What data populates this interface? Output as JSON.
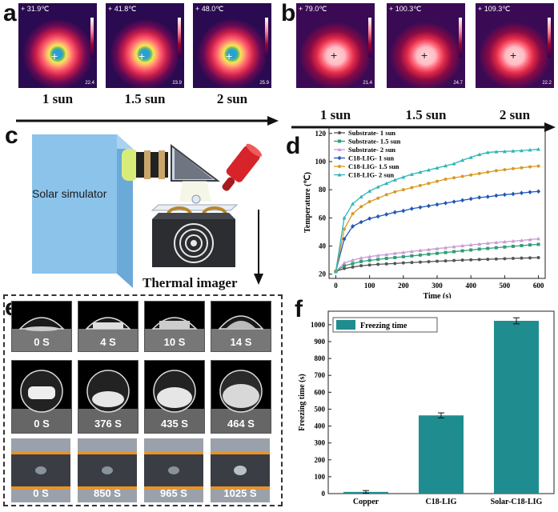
{
  "panels": {
    "a": "a",
    "b": "b",
    "c": "c",
    "d": "d",
    "e": "e",
    "f": "f"
  },
  "panel_a": {
    "images": [
      {
        "temp": "+ 31.9℃",
        "min": "22.4",
        "sun": "1 sun"
      },
      {
        "temp": "+ 41.8℃",
        "min": "23.9",
        "sun": "1.5 sun"
      },
      {
        "temp": "+ 48.0℃",
        "min": "25.9",
        "sun": "2 sun"
      }
    ]
  },
  "panel_b": {
    "images": [
      {
        "temp": "+ 79.0℃",
        "min": "21.4",
        "sun": "1 sun"
      },
      {
        "temp": "+ 100.3℃",
        "min": "24.7",
        "sun": "1.5 sun"
      },
      {
        "temp": "+ 109.3℃",
        "min": "22.2",
        "sun": "2 sun"
      }
    ]
  },
  "panel_c": {
    "solar_label": "Solar simulator",
    "imager_label": "Thermal imager"
  },
  "panel_e": {
    "row1": [
      "0 S",
      "4 S",
      "10 S",
      "14 S"
    ],
    "row2": [
      "0 S",
      "376 S",
      "435 S",
      "464 S"
    ],
    "row3": [
      "0 S",
      "850 S",
      "965 S",
      "1025 S"
    ]
  },
  "colors": {
    "substrate_1": "#555555",
    "substrate_15": "#2e9e74",
    "substrate_2": "#c79bd6",
    "lig_1": "#2057b8",
    "lig_15": "#d99a24",
    "lig_2": "#2cb6b8",
    "bar": "#1f8c8f"
  },
  "chart_data": [
    {
      "type": "line",
      "xlabel": "Time (s)",
      "ylabel": "Temperature (℃)",
      "xlim": [
        -20,
        620
      ],
      "ylim": [
        17,
        125
      ],
      "xticks": [
        0,
        100,
        200,
        300,
        400,
        500,
        600
      ],
      "yticks": [
        20,
        40,
        60,
        80,
        100,
        120
      ],
      "legend_position": "top-left",
      "x": [
        0,
        25,
        50,
        75,
        100,
        125,
        150,
        175,
        200,
        225,
        250,
        275,
        300,
        325,
        350,
        375,
        400,
        425,
        450,
        475,
        500,
        525,
        550,
        575,
        600
      ],
      "series": [
        {
          "name": "Substrate- 1 sun",
          "color_key": "substrate_1",
          "marker": "circle",
          "values": [
            22,
            24,
            25,
            26,
            26.5,
            27,
            27.3,
            27.6,
            28,
            28.3,
            28.6,
            28.9,
            29.2,
            29.4,
            29.7,
            30,
            30.2,
            30.4,
            30.6,
            30.8,
            31,
            31.2,
            31.4,
            31.6,
            31.8
          ]
        },
        {
          "name": "Substrate- 1.5 sun",
          "color_key": "substrate_15",
          "marker": "square",
          "values": [
            22,
            26,
            27.5,
            29,
            29.8,
            30.5,
            31.2,
            31.8,
            32.4,
            33,
            33.6,
            34.2,
            34.8,
            35.4,
            36,
            36.6,
            37.2,
            37.8,
            38.3,
            38.8,
            39.3,
            39.8,
            40.3,
            40.8,
            41.2
          ]
        },
        {
          "name": "Substrate- 2 sun",
          "color_key": "substrate_2",
          "marker": "triangle",
          "values": [
            22,
            28,
            30,
            31.5,
            32.5,
            33.3,
            34,
            34.8,
            35.5,
            36.2,
            36.9,
            37.5,
            38.2,
            38.8,
            39.5,
            40.2,
            40.8,
            41.4,
            42,
            42.5,
            43,
            43.5,
            44,
            44.6,
            45.2
          ]
        },
        {
          "name": "C18-LIG- 1 sun",
          "color_key": "lig_1",
          "marker": "diamond",
          "values": [
            22,
            45,
            54,
            57,
            59.5,
            61,
            62.5,
            64,
            65,
            66.5,
            67.5,
            68.5,
            69.5,
            70.5,
            71.5,
            72.5,
            73.5,
            74.5,
            75,
            75.8,
            76.5,
            77,
            77.7,
            78.3,
            78.8
          ]
        },
        {
          "name": "C18-LIG- 1.5 sun",
          "color_key": "lig_15",
          "marker": "circle",
          "values": [
            22,
            52,
            63,
            68,
            71.5,
            74,
            76.5,
            78.5,
            80,
            81.5,
            83,
            84.5,
            86,
            87.5,
            88.5,
            89.5,
            90.5,
            91.5,
            92.5,
            93.5,
            94.2,
            95,
            95.6,
            96.3,
            96.8
          ]
        },
        {
          "name": "C18-LIG- 2 sun",
          "color_key": "lig_2",
          "marker": "triangle",
          "values": [
            22,
            60,
            70,
            75,
            79,
            82,
            84.5,
            87,
            89,
            91,
            92.5,
            94,
            95.5,
            97,
            98.5,
            101,
            103,
            105,
            106.5,
            107,
            107.2,
            107.5,
            107.8,
            108.3,
            108.8
          ]
        }
      ]
    },
    {
      "type": "bar",
      "ylabel": "Freezing time (s)",
      "legend": "Freezing time",
      "legend_position": "top-left",
      "categories": [
        "Copper",
        "C18-LIG",
        "Solar-C18-LIG"
      ],
      "values": [
        10,
        463,
        1023
      ],
      "errors": [
        8,
        15,
        18
      ],
      "ylim": [
        0,
        1080
      ],
      "yticks": [
        0,
        100,
        200,
        300,
        400,
        500,
        600,
        700,
        800,
        900,
        1000
      ]
    }
  ]
}
